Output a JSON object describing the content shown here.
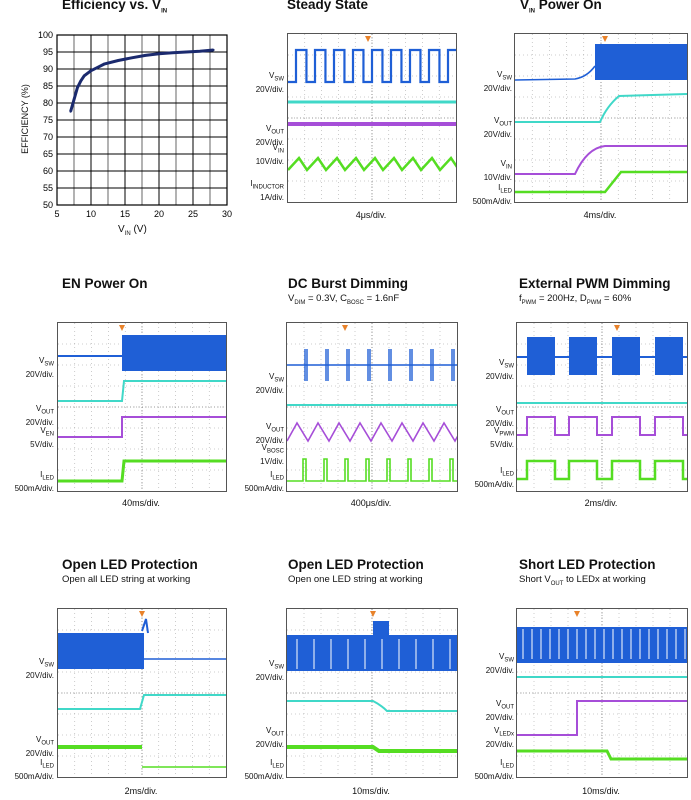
{
  "panels": {
    "efficiency": {
      "title": "Efficiency vs. V",
      "title_sub": "IN",
      "xlabel": "V",
      "xlabel_sub": "IN",
      "xlabel_unit": "(V)",
      "ylabel": "EFFICIENCY (%)"
    },
    "steady": {
      "title": "Steady State",
      "labels": {
        "vsw": "V",
        "vsw_sub": "SW",
        "vsw_div": "20V/div.",
        "vout": "V",
        "vout_sub": "OUT",
        "vout_div": "20V/div.",
        "vin": "V",
        "vin_sub": "IN",
        "vin_div": "10V/div.",
        "iind": "I",
        "iind_sub": "INDUCTOR",
        "iind_div": "1A/div."
      },
      "timediv": "4μs/div."
    },
    "vinpower": {
      "title": "V",
      "title_sub": "IN",
      "title_rest": " Power On",
      "labels": {
        "vsw": "V",
        "vsw_sub": "SW",
        "vsw_div": "20V/div.",
        "vout": "V",
        "vout_sub": "OUT",
        "vout_div": "20V/div.",
        "vin": "V",
        "vin_sub": "IN",
        "vin_div": "10V/div.",
        "iled": "I",
        "iled_sub": "LED",
        "iled_div": "500mA/div."
      },
      "timediv": "4ms/div."
    },
    "enpower": {
      "title": "EN Power On",
      "labels": {
        "vsw": "V",
        "vsw_sub": "SW",
        "vsw_div": "20V/div.",
        "vout": "V",
        "vout_sub": "OUT",
        "vout_div": "20V/div.",
        "ven": "V",
        "ven_sub": "EN",
        "ven_div": "5V/div.",
        "iled": "I",
        "iled_sub": "LED",
        "iled_div": "500mA/div."
      },
      "timediv": "40ms/div."
    },
    "dcburst": {
      "title": "DC Burst Dimming",
      "subtitle_a": "V",
      "subtitle_a_sub": "DIM",
      "subtitle_a_val": " = 0.3V, C",
      "subtitle_b_sub": "BOSC",
      "subtitle_b_val": " = 1.6nF",
      "labels": {
        "vsw": "V",
        "vsw_sub": "SW",
        "vsw_div": "20V/div.",
        "vout": "V",
        "vout_sub": "OUT",
        "vout_div": "20V/div.",
        "vbosc": "V",
        "vbosc_sub": "BOSC",
        "vbosc_div": "1V/div.",
        "iled": "I",
        "iled_sub": "LED",
        "iled_div": "500mA/div."
      },
      "timediv": "400μs/div."
    },
    "extpwm": {
      "title": "External PWM Dimming",
      "subtitle_a": "f",
      "subtitle_a_sub": "PWM",
      "subtitle_a_val": " = 200Hz, D",
      "subtitle_b_sub": "PWM",
      "subtitle_b_val": " = 60%",
      "labels": {
        "vsw": "V",
        "vsw_sub": "SW",
        "vsw_div": "20V/div.",
        "vout": "V",
        "vout_sub": "OUT",
        "vout_div": "20V/div.",
        "vpwm": "V",
        "vpwm_sub": "PWM",
        "vpwm_div": "5V/div.",
        "iled": "I",
        "iled_sub": "LED",
        "iled_div": "500mA/div."
      },
      "timediv": "2ms/div."
    },
    "openall": {
      "title": "Open LED Protection",
      "subtitle": "Open all LED string at working",
      "labels": {
        "vsw": "V",
        "vsw_sub": "SW",
        "vsw_div": "20V/div.",
        "vout": "V",
        "vout_sub": "OUT",
        "vout_div": "20V/div.",
        "iled": "I",
        "iled_sub": "LED",
        "iled_div": "500mA/div."
      },
      "timediv": "2ms/div."
    },
    "openone": {
      "title": "Open LED Protection",
      "subtitle": "Open one LED string at working",
      "labels": {
        "vsw": "V",
        "vsw_sub": "SW",
        "vsw_div": "20V/div.",
        "vout": "V",
        "vout_sub": "OUT",
        "vout_div": "20V/div.",
        "iled": "I",
        "iled_sub": "LED",
        "iled_div": "500mA/div."
      },
      "timediv": "10ms/div."
    },
    "short": {
      "title": "Short LED Protection",
      "subtitle_a": "Short V",
      "subtitle_a_sub": "OUT",
      "subtitle_a_val": " to LEDx at working",
      "labels": {
        "vsw": "V",
        "vsw_sub": "SW",
        "vsw_div": "20V/div.",
        "vout": "V",
        "vout_sub": "OUT",
        "vout_div": "20V/div.",
        "vledx": "V",
        "vledx_sub": "LEDx",
        "vledx_div": "20V/div.",
        "iled": "I",
        "iled_sub": "LED",
        "iled_div": "500mA/div."
      },
      "timediv": "10ms/div."
    }
  },
  "colors": {
    "vsw": "#1f5fd6",
    "vout": "#40d8c8",
    "third": "#a64ed8",
    "iled": "#55dd22",
    "trigger": "#e8822a",
    "grid": "#9a9a9a",
    "effline": "#1b2a6e"
  },
  "chart_data": {
    "type": "line",
    "title": "Efficiency vs. VIN",
    "xlabel": "VIN (V)",
    "ylabel": "EFFICIENCY (%)",
    "xlim": [
      5,
      30
    ],
    "ylim": [
      50,
      100
    ],
    "xticks": [
      5,
      10,
      15,
      20,
      25,
      30
    ],
    "yticks": [
      50,
      55,
      60,
      65,
      70,
      75,
      80,
      85,
      90,
      95,
      100
    ],
    "grid": true,
    "series": [
      {
        "x": [
          7,
          7.5,
          8,
          8.5,
          9,
          10,
          11,
          12,
          14,
          16,
          18,
          20,
          22,
          24,
          26,
          28
        ],
        "values": [
          77.5,
          81,
          84.5,
          86.5,
          88,
          89.5,
          90.5,
          91.5,
          92.5,
          93.3,
          94,
          94.5,
          94.8,
          95,
          95.2,
          95.6
        ]
      }
    ]
  }
}
